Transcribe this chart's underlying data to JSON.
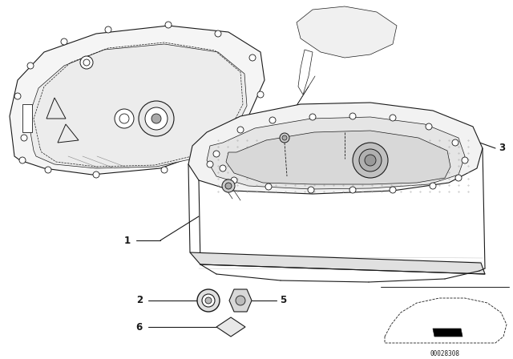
{
  "bg_color": "#ffffff",
  "fig_width": 6.4,
  "fig_height": 4.48,
  "watermark": "00028308",
  "line_color": "#1a1a1a",
  "label_fontsize": 8.5,
  "dpi": 100
}
